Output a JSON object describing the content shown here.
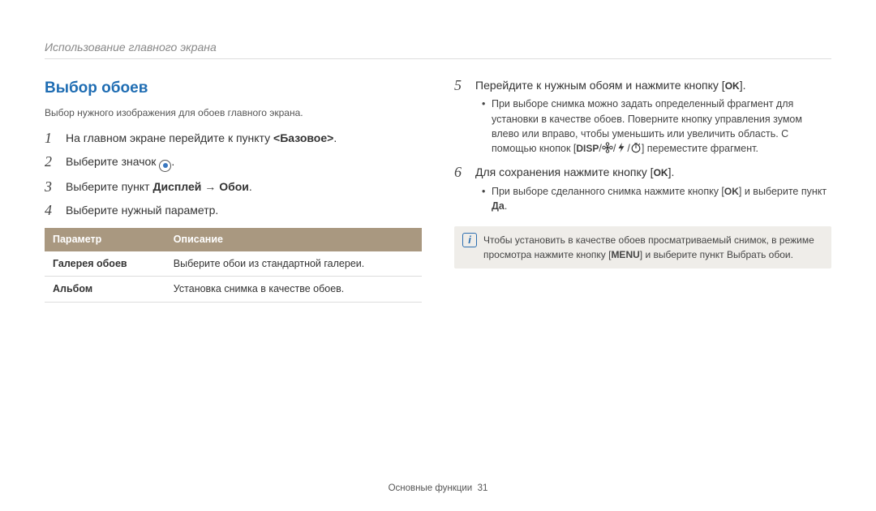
{
  "breadcrumb": "Использование главного экрана",
  "section_title": "Выбор обоев",
  "subtitle": "Выбор нужного изображения для обоев главного экрана.",
  "left_steps": [
    {
      "n": "1",
      "parts": [
        {
          "t": "На главном экране перейдите к пункту "
        },
        {
          "t": "<Базовое>",
          "bold": true
        },
        {
          "t": "."
        }
      ]
    },
    {
      "n": "2",
      "parts": [
        {
          "t": "Выберите значок "
        },
        {
          "icon": "target"
        },
        {
          "t": "."
        }
      ]
    },
    {
      "n": "3",
      "parts": [
        {
          "t": "Выберите пункт "
        },
        {
          "t": "Дисплей",
          "bold": true
        },
        {
          "t": " → "
        },
        {
          "t": "Обои",
          "bold": true
        },
        {
          "t": "."
        }
      ]
    },
    {
      "n": "4",
      "parts": [
        {
          "t": "Выберите нужный параметр."
        }
      ]
    }
  ],
  "table": {
    "columns": [
      "Параметр",
      "Описание"
    ],
    "rows": [
      [
        "Галерея обоев",
        "Выберите обои из стандартной галереи."
      ],
      [
        "Альбом",
        "Установка снимка в качестве обоев."
      ]
    ],
    "header_bg": "#a99880",
    "header_fg": "#ffffff"
  },
  "right_steps": [
    {
      "n": "5",
      "parts": [
        {
          "t": "Перейдите к нужным обоям и нажмите кнопку ["
        },
        {
          "key": "OK"
        },
        {
          "t": "]."
        }
      ],
      "bullets": [
        [
          {
            "t": "При выборе снимка можно задать определенный фрагмент для установки в качестве обоев. Поверните кнопку управления зумом влево или вправо, чтобы уменьшить или увеличить область. С помощью кнопок ["
          },
          {
            "key": "DISP"
          },
          {
            "t": "/"
          },
          {
            "icon": "flower"
          },
          {
            "t": "/"
          },
          {
            "icon": "flash"
          },
          {
            "t": "/"
          },
          {
            "icon": "timer"
          },
          {
            "t": "] переместите фрагмент."
          }
        ]
      ]
    },
    {
      "n": "6",
      "parts": [
        {
          "t": "Для сохранения нажмите кнопку ["
        },
        {
          "key": "OK"
        },
        {
          "t": "]."
        }
      ],
      "bullets": [
        [
          {
            "t": "При выборе сделанного снимка нажмите кнопку ["
          },
          {
            "key": "OK"
          },
          {
            "t": "] и выберите пункт "
          },
          {
            "t": "Да",
            "bold": true
          },
          {
            "t": "."
          }
        ]
      ]
    }
  ],
  "tip": [
    {
      "t": "Чтобы установить в качестве обоев просматриваемый снимок, в режиме просмотра нажмите кнопку ["
    },
    {
      "key": "MENU"
    },
    {
      "t": "] и выберите пункт "
    },
    {
      "t": "Выбрать обои",
      "bold": true
    },
    {
      "t": "."
    }
  ],
  "footer": {
    "label": "Основные функции",
    "page": "31"
  },
  "colors": {
    "accent": "#1f6db3"
  }
}
